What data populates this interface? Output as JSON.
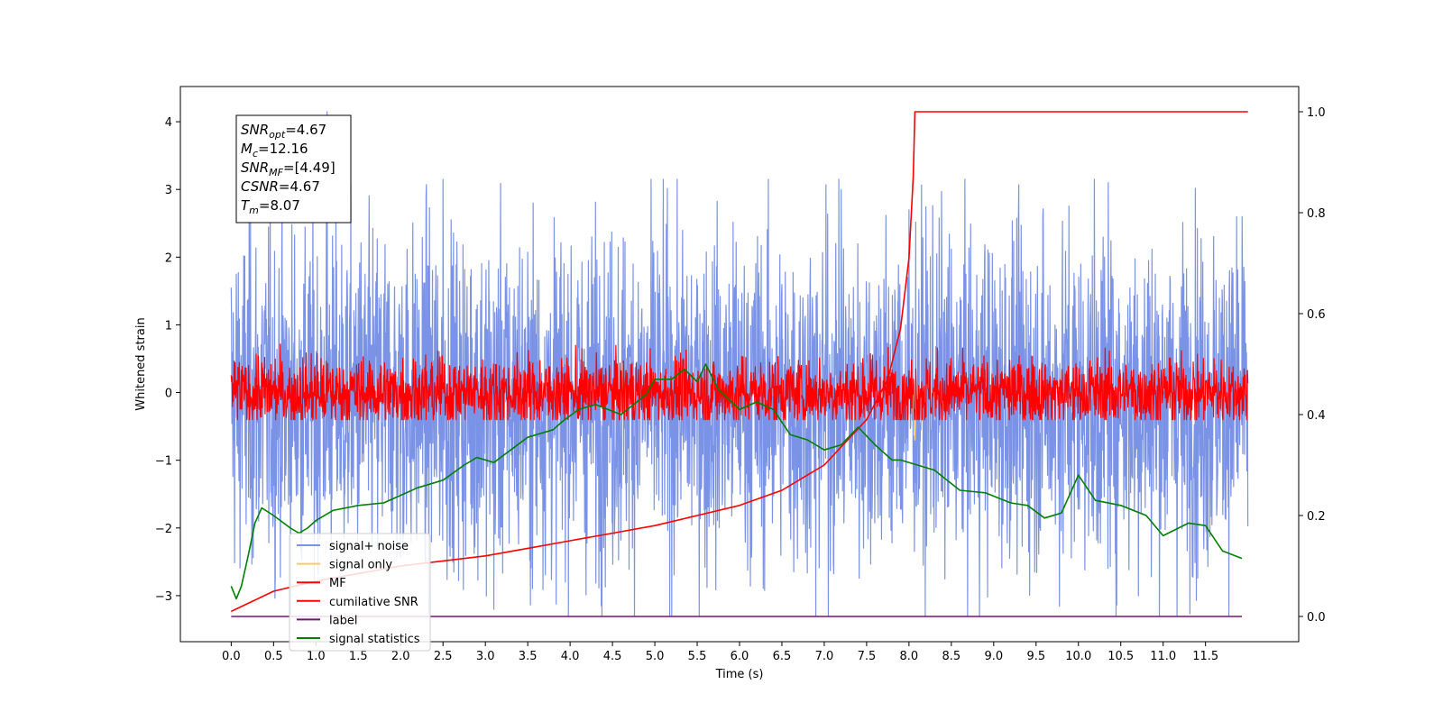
{
  "chart_data": {
    "type": "line",
    "xlabel": "Time (s)",
    "ylabel": "Whitened strain",
    "xlim": [
      -0.6,
      12.6
    ],
    "ylim": [
      -3.68,
      4.52
    ],
    "ylim_right": [
      -0.05,
      1.05
    ],
    "x_ticks": [
      "0.0",
      "0.5",
      "1.0",
      "1.5",
      "2.0",
      "2.5",
      "3.0",
      "3.5",
      "4.0",
      "4.5",
      "5.0",
      "5.5",
      "6.0",
      "6.5",
      "7.0",
      "7.5",
      "8.0",
      "8.5",
      "9.0",
      "9.5",
      "10.0",
      "10.5",
      "11.0",
      "11.5"
    ],
    "y_ticks_left": [
      "−3",
      "−2",
      "−1",
      "0",
      "1",
      "2",
      "3",
      "4"
    ],
    "y_ticks_right": [
      "0.0",
      "0.2",
      "0.4",
      "0.6",
      "0.8",
      "1.0"
    ],
    "grid": false,
    "legend_placement": "lower-left",
    "stats_box": [
      {
        "sym": "SNR",
        "sub": "opt",
        "val": "=4.67"
      },
      {
        "sym": "M",
        "sub": "c",
        "val": "=12.16"
      },
      {
        "sym": "SNR",
        "sub": "MF",
        "val": "=[4.49]"
      },
      {
        "sym": "CSNR",
        "sub": "",
        "val": "=4.67"
      },
      {
        "sym": "T",
        "sub": "m",
        "val": "=8.07"
      }
    ],
    "series": [
      {
        "name": "signal+ noise",
        "color": "#7b93e6",
        "axis": "left",
        "kind": "noise",
        "x_range": [
          0.0,
          12.0
        ],
        "mean": -0.1,
        "peak_abs": 4.15,
        "envelope": [
          -3.3,
          3.15
        ]
      },
      {
        "name": "signal only",
        "color": "#f6c96a",
        "axis": "left",
        "kind": "spike",
        "x": [
          8.05,
          8.07,
          8.09
        ],
        "y": [
          0.0,
          -0.7,
          0.0
        ]
      },
      {
        "name": "MF",
        "color": "#ff0000",
        "axis": "left",
        "kind": "noise",
        "x_range": [
          0.0,
          12.0
        ],
        "mean": 0.0,
        "envelope": [
          -0.4,
          0.95
        ]
      },
      {
        "name": "cumilative SNR",
        "color": "#ff0000",
        "axis": "right",
        "x": [
          0.0,
          0.5,
          1.0,
          1.5,
          2.0,
          2.5,
          3.0,
          3.5,
          4.0,
          4.5,
          5.0,
          5.5,
          6.0,
          6.5,
          7.0,
          7.5,
          7.75,
          7.9,
          8.0,
          8.05,
          8.07,
          9.0,
          10.0,
          11.0,
          12.0
        ],
        "values": [
          0.01,
          0.05,
          0.07,
          0.085,
          0.1,
          0.11,
          0.12,
          0.135,
          0.15,
          0.165,
          0.18,
          0.2,
          0.22,
          0.25,
          0.3,
          0.39,
          0.47,
          0.57,
          0.71,
          0.87,
          1.0,
          1.0,
          1.0,
          1.0,
          1.0
        ]
      },
      {
        "name": "label",
        "color": "#7b0f7b",
        "axis": "right",
        "x": [
          0.0,
          11.93
        ],
        "values": [
          0.0,
          0.0
        ]
      },
      {
        "name": "signal statistics",
        "color": "#008000",
        "axis": "right",
        "x": [
          0.0,
          0.06,
          0.12,
          0.2,
          0.28,
          0.36,
          0.5,
          0.7,
          0.8,
          0.9,
          1.0,
          1.2,
          1.5,
          1.8,
          2.0,
          2.2,
          2.5,
          2.75,
          2.9,
          3.1,
          3.3,
          3.5,
          3.6,
          3.8,
          3.9,
          4.1,
          4.3,
          4.6,
          4.9,
          5.0,
          5.2,
          5.35,
          5.5,
          5.6,
          5.75,
          6.0,
          6.2,
          6.4,
          6.6,
          6.8,
          7.0,
          7.2,
          7.4,
          7.6,
          7.8,
          7.9,
          8.1,
          8.3,
          8.6,
          8.9,
          9.2,
          9.4,
          9.6,
          9.8,
          10.0,
          10.2,
          10.5,
          10.8,
          11.0,
          11.3,
          11.5,
          11.7,
          11.93
        ],
        "values": [
          0.06,
          0.035,
          0.06,
          0.12,
          0.185,
          0.215,
          0.2,
          0.175,
          0.165,
          0.175,
          0.19,
          0.21,
          0.22,
          0.225,
          0.24,
          0.255,
          0.27,
          0.3,
          0.315,
          0.305,
          0.33,
          0.355,
          0.36,
          0.37,
          0.385,
          0.41,
          0.42,
          0.4,
          0.44,
          0.47,
          0.47,
          0.49,
          0.465,
          0.5,
          0.45,
          0.41,
          0.425,
          0.41,
          0.36,
          0.35,
          0.33,
          0.34,
          0.375,
          0.34,
          0.31,
          0.31,
          0.3,
          0.29,
          0.25,
          0.245,
          0.225,
          0.22,
          0.195,
          0.205,
          0.28,
          0.23,
          0.22,
          0.2,
          0.16,
          0.185,
          0.18,
          0.13,
          0.115
        ]
      }
    ]
  }
}
